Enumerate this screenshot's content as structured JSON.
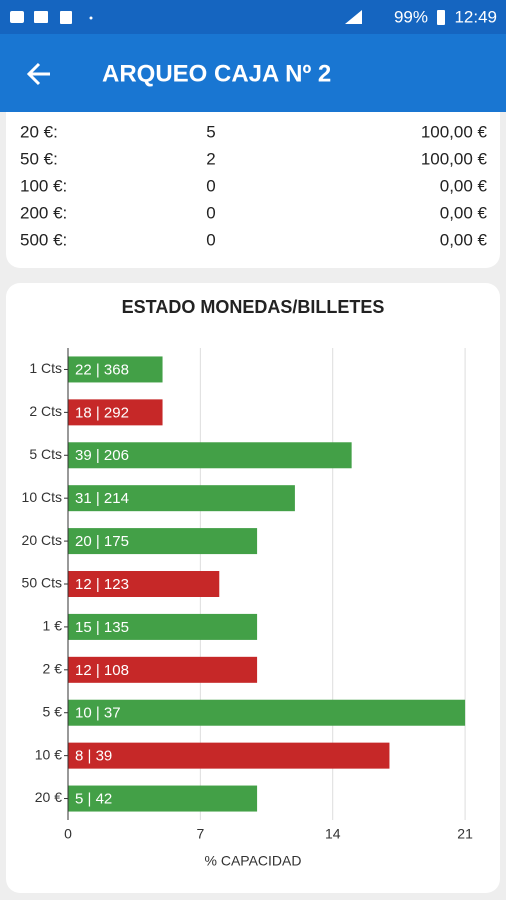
{
  "status_bar": {
    "battery": "99%",
    "time": "12:49"
  },
  "app_bar": {
    "title": "ARQUEO CAJA Nº 2"
  },
  "table": {
    "rows": [
      [
        "20 €:",
        "5",
        "100,00 €"
      ],
      [
        "50 €:",
        "2",
        "100,00 €"
      ],
      [
        "100 €:",
        "0",
        "0,00 €"
      ],
      [
        "200 €:",
        "0",
        "0,00 €"
      ],
      [
        "500 €:",
        "0",
        "0,00 €"
      ]
    ]
  },
  "chart_data": {
    "type": "hbar",
    "title": "ESTADO MONEDAS/BILLETES",
    "x_label": "% CAPACIDAD",
    "categories": [
      "1 Cts",
      "2 Cts",
      "5 Cts",
      "10 Cts",
      "20 Cts",
      "50 Cts",
      "1 €",
      "2 €",
      "5 €",
      "10 €",
      "20 €"
    ],
    "values": [
      5,
      5,
      15,
      12,
      10,
      8,
      10,
      10,
      21,
      17,
      10
    ],
    "bar_texts": [
      "22 | 368",
      "18 | 292",
      "39 | 206",
      "31 | 214",
      "20 | 175",
      "12 | 123",
      "15 | 135",
      "12 | 108",
      "10 | 37",
      "8 | 39",
      "5 | 42"
    ],
    "colors": [
      "#43a047",
      "#c62828",
      "#43a047",
      "#43a047",
      "#43a047",
      "#c62828",
      "#43a047",
      "#c62828",
      "#43a047",
      "#c62828",
      "#43a047"
    ],
    "xlim": [
      0,
      22
    ],
    "xticks": [
      0,
      7,
      14,
      21
    ],
    "grid": true
  }
}
